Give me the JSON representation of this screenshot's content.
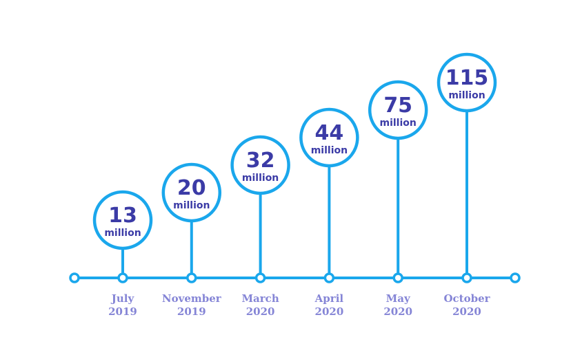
{
  "milestones": [
    {
      "value": "13",
      "unit": "million",
      "month": "July",
      "year": "2019"
    },
    {
      "value": "20",
      "unit": "million",
      "month": "November",
      "year": "2019"
    },
    {
      "value": "32",
      "unit": "million",
      "month": "March",
      "year": "2020"
    },
    {
      "value": "44",
      "unit": "million",
      "month": "April",
      "year": "2020"
    },
    {
      "value": "75",
      "unit": "million",
      "month": "May",
      "year": "2020"
    },
    {
      "value": "115",
      "unit": "million",
      "month": "October",
      "year": "2020"
    }
  ]
}
